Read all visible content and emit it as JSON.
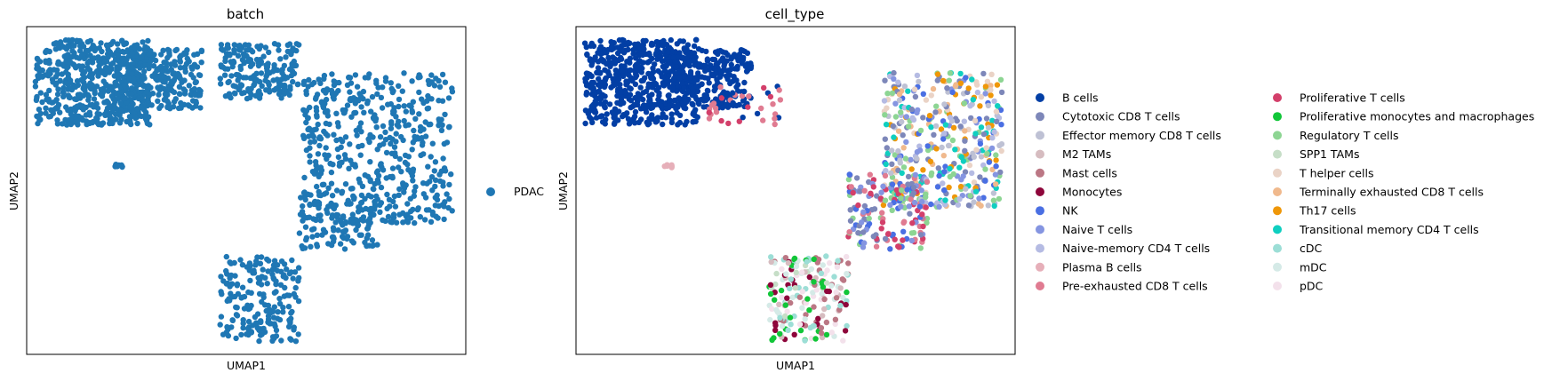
{
  "chart_data": [
    {
      "type": "scatter",
      "title": "batch",
      "xlabel": "UMAP1",
      "ylabel": "UMAP2",
      "grid": false,
      "legend_placement": "right",
      "series": [
        {
          "name": "PDAC",
          "color": "#1f77b4"
        }
      ],
      "clusters": [
        {
          "label": "PDAC",
          "x": [
            0.02,
            0.28
          ],
          "y": [
            0.7,
            0.96
          ]
        },
        {
          "label": "PDAC",
          "x": [
            0.2,
            0.4
          ],
          "y": [
            0.75,
            0.93
          ]
        },
        {
          "label": "PDAC",
          "x": [
            0.44,
            0.62
          ],
          "y": [
            0.78,
            0.95
          ]
        },
        {
          "label": "PDAC",
          "x": [
            0.63,
            0.97
          ],
          "y": [
            0.4,
            0.86
          ]
        },
        {
          "label": "PDAC",
          "x": [
            0.62,
            0.8
          ],
          "y": [
            0.32,
            0.5
          ]
        },
        {
          "label": "PDAC",
          "x": [
            0.44,
            0.62
          ],
          "y": [
            0.04,
            0.3
          ]
        },
        {
          "label": "PDAC",
          "x": [
            0.2,
            0.22
          ],
          "y": [
            0.57,
            0.58
          ]
        }
      ]
    },
    {
      "type": "scatter",
      "title": "cell_type",
      "xlabel": "UMAP1",
      "ylabel": "UMAP2",
      "grid": false,
      "legend_placement": "right",
      "legend_columns": 2,
      "series": [
        {
          "name": "B cells",
          "color": "#023fa5"
        },
        {
          "name": "Cytotoxic CD8 T cells",
          "color": "#7d87b9"
        },
        {
          "name": "Effector memory CD8 T cells",
          "color": "#bec1d4"
        },
        {
          "name": "M2 TAMs",
          "color": "#d6bcc0"
        },
        {
          "name": "Mast cells",
          "color": "#bb7784"
        },
        {
          "name": "Monocytes",
          "color": "#8e063b"
        },
        {
          "name": "NK",
          "color": "#4a6fe3"
        },
        {
          "name": "Naive T cells",
          "color": "#8595e1"
        },
        {
          "name": "Naive-memory CD4 T cells",
          "color": "#b5bbe3"
        },
        {
          "name": "Plasma B cells",
          "color": "#e6afb9"
        },
        {
          "name": "Pre-exhausted CD8 T cells",
          "color": "#e07b91"
        },
        {
          "name": "Proliferative T cells",
          "color": "#d33f6a"
        },
        {
          "name": "Proliferative monocytes and macrophages",
          "color": "#11c638"
        },
        {
          "name": "Regulatory T cells",
          "color": "#8dd593"
        },
        {
          "name": "SPP1 TAMs",
          "color": "#c6dec7"
        },
        {
          "name": "T helper cells",
          "color": "#ead3c6"
        },
        {
          "name": "Terminally exhausted CD8 T cells",
          "color": "#f0b98d"
        },
        {
          "name": "Th17 cells",
          "color": "#ef9708"
        },
        {
          "name": "Transitional memory CD4 T cells",
          "color": "#0fcfc0"
        },
        {
          "name": "cDC",
          "color": "#9cded6"
        },
        {
          "name": "mDC",
          "color": "#d5eae7"
        },
        {
          "name": "pDC",
          "color": "#f3e1eb"
        }
      ]
    }
  ]
}
